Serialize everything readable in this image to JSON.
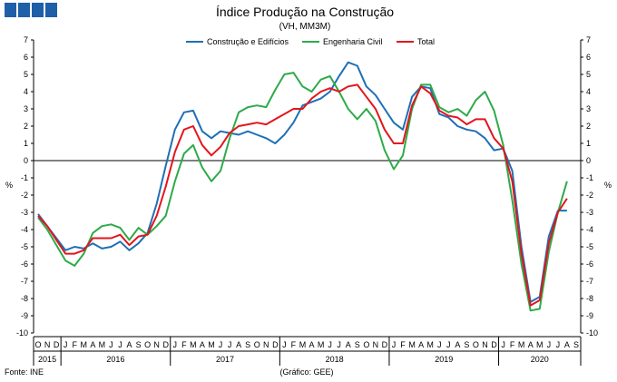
{
  "chart_data": {
    "type": "line",
    "title": "Índice Produção na Construção",
    "subtitle": "(VH, MM3M)",
    "ylabel": "%",
    "ylim": [
      -10,
      7
    ],
    "yticks": [
      -10,
      -9,
      -8,
      -7,
      -6,
      -5,
      -4,
      -3,
      -2,
      -1,
      0,
      1,
      2,
      3,
      4,
      5,
      6,
      7
    ],
    "grid": false,
    "legend_position": "top-center",
    "months": [
      "O",
      "N",
      "D",
      "J",
      "F",
      "M",
      "A",
      "M",
      "J",
      "J",
      "A",
      "S",
      "O",
      "N",
      "D",
      "J",
      "F",
      "M",
      "A",
      "M",
      "J",
      "J",
      "A",
      "S",
      "O",
      "N",
      "D",
      "J",
      "F",
      "M",
      "A",
      "M",
      "J",
      "J",
      "A",
      "S",
      "O",
      "N",
      "D",
      "J",
      "F",
      "M",
      "A",
      "M",
      "J",
      "J",
      "A",
      "S",
      "O",
      "N",
      "D",
      "J",
      "F",
      "M",
      "A",
      "M",
      "J",
      "J",
      "A",
      "S"
    ],
    "years": [
      {
        "label": "2015",
        "start": 0,
        "end": 3
      },
      {
        "label": "2016",
        "start": 3,
        "end": 15
      },
      {
        "label": "2017",
        "start": 15,
        "end": 27
      },
      {
        "label": "2018",
        "start": 27,
        "end": 39
      },
      {
        "label": "2019",
        "start": 39,
        "end": 51
      },
      {
        "label": "2020",
        "start": 51,
        "end": 60
      }
    ],
    "series": [
      {
        "name": "Construção e Edifícios",
        "color": "#1f6fb5",
        "values": [
          -3.1,
          -3.8,
          -4.5,
          -5.2,
          -5.0,
          -5.1,
          -4.8,
          -5.1,
          -5.0,
          -4.7,
          -5.2,
          -4.8,
          -4.2,
          -2.5,
          -0.3,
          1.8,
          2.8,
          2.9,
          1.7,
          1.3,
          1.7,
          1.6,
          1.5,
          1.7,
          1.5,
          1.3,
          1.0,
          1.5,
          2.2,
          3.2,
          3.4,
          3.6,
          4.0,
          4.9,
          5.7,
          5.5,
          4.3,
          3.8,
          3.0,
          2.2,
          1.8,
          3.7,
          4.3,
          4.2,
          2.7,
          2.5,
          2.0,
          1.8,
          1.7,
          1.3,
          0.6,
          0.7,
          -0.6,
          -5.0,
          -8.2,
          -7.9,
          -4.4,
          -2.9,
          -2.9,
          null
        ]
      },
      {
        "name": "Engenharia Civil",
        "color": "#2eaa4a",
        "values": [
          -3.3,
          -4.0,
          -4.9,
          -5.8,
          -6.1,
          -5.4,
          -4.2,
          -3.8,
          -3.7,
          -3.9,
          -4.6,
          -3.9,
          -4.3,
          -3.8,
          -3.2,
          -1.2,
          0.4,
          0.9,
          -0.4,
          -1.2,
          -0.6,
          1.3,
          2.8,
          3.1,
          3.2,
          3.1,
          4.1,
          5.0,
          5.1,
          4.3,
          4.0,
          4.7,
          4.9,
          4.0,
          3.0,
          2.4,
          3.0,
          2.3,
          0.6,
          -0.5,
          0.3,
          3.0,
          4.4,
          4.4,
          3.1,
          2.8,
          3.0,
          2.6,
          3.5,
          4.0,
          2.9,
          0.9,
          -2.3,
          -6.0,
          -8.7,
          -8.6,
          -5.3,
          -3.0,
          -1.2,
          null
        ]
      },
      {
        "name": "Total",
        "color": "#e3151c",
        "values": [
          -3.2,
          -3.8,
          -4.6,
          -5.4,
          -5.4,
          -5.2,
          -4.5,
          -4.5,
          -4.5,
          -4.3,
          -4.9,
          -4.4,
          -4.3,
          -3.2,
          -1.5,
          0.5,
          1.8,
          2.0,
          0.9,
          0.3,
          0.8,
          1.6,
          2.0,
          2.1,
          2.2,
          2.1,
          2.4,
          2.7,
          3.0,
          3.0,
          3.6,
          4.0,
          4.2,
          4.0,
          4.3,
          4.4,
          3.7,
          3.0,
          1.8,
          1.0,
          1.0,
          3.2,
          4.3,
          3.9,
          2.9,
          2.6,
          2.5,
          2.1,
          2.4,
          2.4,
          1.3,
          0.7,
          -1.2,
          -5.4,
          -8.4,
          -8.1,
          -4.8,
          -3.0,
          -2.2,
          null
        ]
      }
    ]
  },
  "footer": {
    "source": "Fonte: INE",
    "credit": "(Gráfico: GEE)"
  },
  "header": {
    "brand_color": "#1f5fa8"
  }
}
